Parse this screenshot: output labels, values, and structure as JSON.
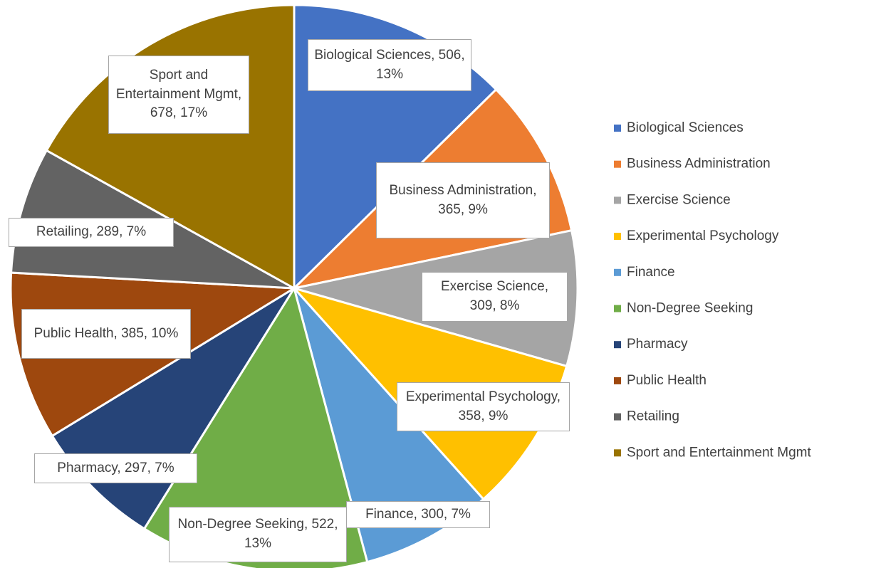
{
  "chart_data": {
    "type": "pie",
    "categories": [
      "Biological Sciences",
      "Business Administration",
      "Exercise Science",
      "Experimental Psychology",
      "Finance",
      "Non-Degree Seeking",
      "Pharmacy",
      "Public Health",
      "Retailing",
      "Sport and Entertainment Mgmt"
    ],
    "values": [
      506,
      365,
      309,
      358,
      300,
      522,
      297,
      385,
      289,
      678
    ],
    "value_labels": [
      "Biological Sciences, 506, 13%",
      "Business Administration, 365, 9%",
      "Exercise Science, 309, 8%",
      "Experimental Psychology, 358, 9%",
      "Finance, 300, 7%",
      "Non-Degree Seeking, 522, 13%",
      "Pharmacy, 297, 7%",
      "Public Health, 385, 10%",
      "Retailing, 289, 7%",
      "Sport and Entertainment Mgmt, 678, 17%"
    ],
    "colors": [
      "#4472c4",
      "#ed7d31",
      "#a5a5a5",
      "#ffc000",
      "#5b9bd5",
      "#70ad47",
      "#264478",
      "#9e480e",
      "#636363",
      "#997300"
    ],
    "legend": "right"
  }
}
